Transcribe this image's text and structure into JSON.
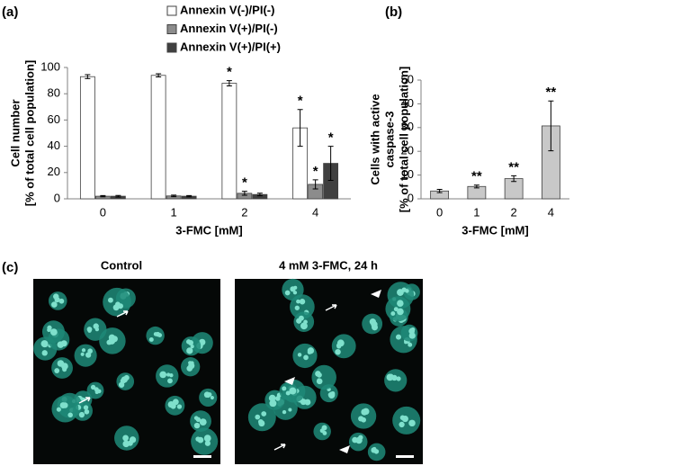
{
  "chart_data": [
    {
      "type": "bar",
      "panel": "(a)",
      "ylabel": [
        "Cell number",
        "[% of total cell population]"
      ],
      "xlabel": "3-FMC [mM]",
      "categories": [
        "0",
        "1",
        "2",
        "4"
      ],
      "ylim": [
        0,
        100
      ],
      "yticks": [
        0,
        20,
        40,
        60,
        80,
        100
      ],
      "series": [
        {
          "name": "Annexin V(-)/PI(-)",
          "color": "#ffffff",
          "values": [
            93,
            94,
            88,
            54
          ],
          "errors": [
            1.5,
            1.2,
            2,
            14
          ],
          "significance": [
            null,
            null,
            "*",
            "*"
          ]
        },
        {
          "name": "Annexin V(+)/PI(-)",
          "color": "#8c8c8c",
          "values": [
            2,
            2.2,
            4.2,
            11
          ],
          "errors": [
            0.5,
            0.6,
            1.5,
            3.5
          ],
          "significance": [
            null,
            null,
            "*",
            "*"
          ]
        },
        {
          "name": "Annexin V(+)/PI(+)",
          "color": "#404040",
          "values": [
            2,
            2,
            3.3,
            27
          ],
          "errors": [
            0.6,
            0.5,
            1,
            13
          ],
          "significance": [
            null,
            null,
            null,
            "*"
          ]
        }
      ]
    },
    {
      "type": "bar",
      "panel": "(b)",
      "ylabel": [
        "Cells with active",
        "caspase-3",
        "[% of total cell population]"
      ],
      "xlabel": "3-FMC [mM]",
      "categories": [
        "0",
        "1",
        "2",
        "4"
      ],
      "ylim": [
        0,
        50
      ],
      "yticks": [
        0,
        10,
        20,
        30,
        40,
        50
      ],
      "series": [
        {
          "color": "#c8c8c8",
          "values": [
            3.3,
            5.2,
            8.5,
            30.7
          ],
          "errors": [
            0.7,
            0.6,
            1.2,
            10.5
          ],
          "significance": [
            null,
            "**",
            "**",
            "**"
          ]
        }
      ]
    }
  ],
  "panel_c": {
    "label": "(c)",
    "images": [
      {
        "title": "Control"
      },
      {
        "title": "4 mM 3-FMC, 24 h"
      }
    ]
  }
}
